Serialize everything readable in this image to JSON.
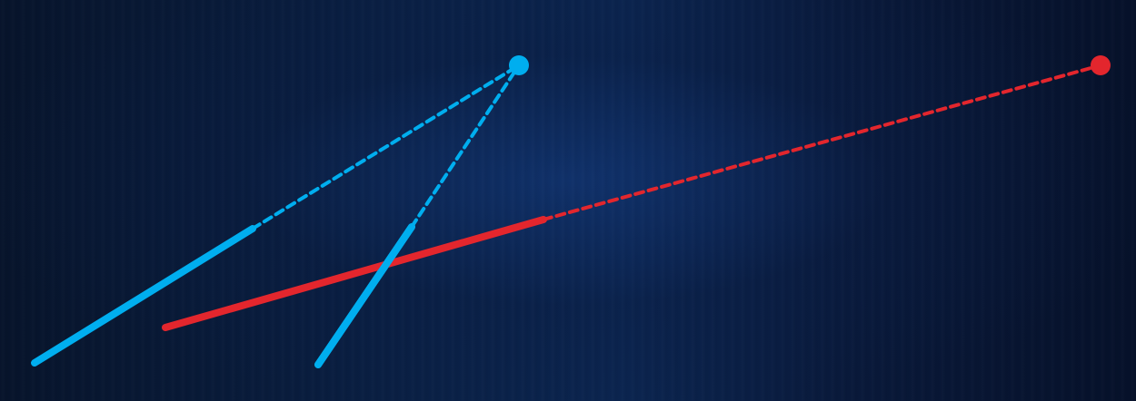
{
  "colors": {
    "background": "#0a1f45",
    "blue": "#00aeef",
    "red": "#e3262d"
  },
  "shapes": {
    "blue_group": {
      "color": "#00aeef",
      "kind": "two solid line segments converging via dashed extensions to a single vanishing point"
    },
    "red_group": {
      "color": "#e3262d",
      "kind": "one solid line segment continuing via a dashed extension to a vanishing point"
    }
  }
}
